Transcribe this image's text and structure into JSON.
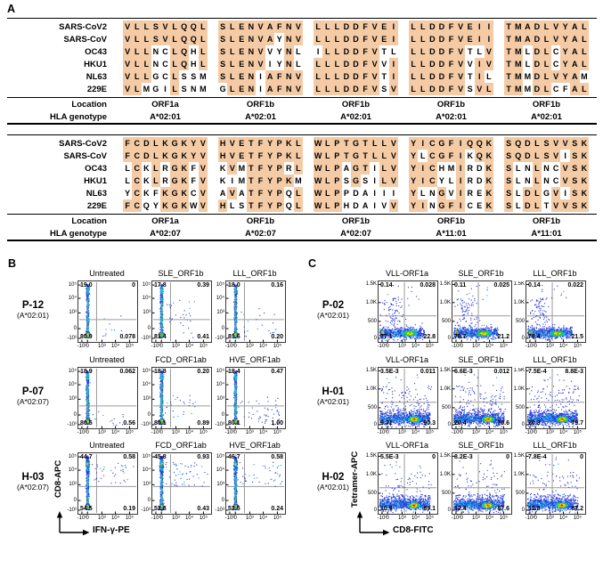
{
  "panels": {
    "A": {
      "label": "A",
      "row_labels": [
        "SARS-CoV2",
        "SARS-CoV",
        "OC43",
        "HKU1",
        "NL63",
        "229E"
      ],
      "location_label": "Location",
      "hla_label": "HLA genotype",
      "highlight_color": "#f5cba6",
      "blocks": [
        {
          "cols": [
            {
              "loc": "ORF1a",
              "hla": "A*02:01",
              "rows": [
                {
                  "s": "VLLSVLQQL",
                  "m": "111111111"
                },
                {
                  "s": "VLLSVLQQL",
                  "m": "111111111"
                },
                {
                  "s": "VLLNCLQHL",
                  "m": "111001101"
                },
                {
                  "s": "VLLNCLQHL",
                  "m": "111001101"
                },
                {
                  "s": "VLLGCLSSM",
                  "m": "111001000"
                },
                {
                  "s": "VLMGILSNM",
                  "m": "110001000"
                }
              ]
            },
            {
              "loc": "ORF1b",
              "hla": "A*02:01",
              "rows": [
                {
                  "s": "SLENVAFNV",
                  "m": "111111111"
                },
                {
                  "s": "SLENVAYNV",
                  "m": "111111011"
                },
                {
                  "s": "SLENVVYNL",
                  "m": "111110010"
                },
                {
                  "s": "SLENVIYNL",
                  "m": "111110010"
                },
                {
                  "s": "SLENIAFNV",
                  "m": "111101111"
                },
                {
                  "s": "GLENIAFNV",
                  "m": "011101111"
                }
              ]
            },
            {
              "loc": "ORF1b",
              "hla": "A*02:01",
              "rows": [
                {
                  "s": "LLLDDFVEI",
                  "m": "111111111"
                },
                {
                  "s": "LLLDDFVEI",
                  "m": "111111111"
                },
                {
                  "s": "ILLDDFVTL",
                  "m": "011111100"
                },
                {
                  "s": "LLLDDFVVI",
                  "m": "111111101"
                },
                {
                  "s": "LLLDDFVTI",
                  "m": "111111101"
                },
                {
                  "s": "LLLDDFVSV",
                  "m": "111111101"
                }
              ]
            },
            {
              "loc": "ORF1b",
              "hla": "A*02:01",
              "rows": [
                {
                  "s": "LLDDFVEII",
                  "m": "111111111"
                },
                {
                  "s": "LLDDFVEII",
                  "m": "111111111"
                },
                {
                  "s": "LLDDFVTLV",
                  "m": "111111001"
                },
                {
                  "s": "LLDDFVVIV",
                  "m": "111111011"
                },
                {
                  "s": "LLDDFVTIL",
                  "m": "111111010"
                },
                {
                  "s": "LLDDFVSVL",
                  "m": "111111011"
                }
              ]
            },
            {
              "loc": "ORF1b",
              "hla": "A*02:01",
              "rows": [
                {
                  "s": "TMADLVYAL",
                  "m": "111111111"
                },
                {
                  "s": "TMADLVYAL",
                  "m": "111111111"
                },
                {
                  "s": "TMLDLCYAL",
                  "m": "110110111"
                },
                {
                  "s": "TMLDLCYAL",
                  "m": "110110111"
                },
                {
                  "s": "TMMDLVYAM",
                  "m": "110111110"
                },
                {
                  "s": "TMMDLCFAL",
                  "m": "110110011"
                }
              ]
            }
          ]
        },
        {
          "cols": [
            {
              "loc": "ORF1a",
              "hla": "A*02:07",
              "rows": [
                {
                  "s": "FCDLKGKYV",
                  "m": "111111111"
                },
                {
                  "s": "FCDLKGKYV",
                  "m": "111111111"
                },
                {
                  "s": "LCKLRGKFV",
                  "m": "010101101"
                },
                {
                  "s": "LCKLRGKFV",
                  "m": "010101101"
                },
                {
                  "s": "YCKFKGKCV",
                  "m": "010011101"
                },
                {
                  "s": "FCQYKGKWV",
                  "m": "110011101"
                }
              ]
            },
            {
              "loc": "ORF1b",
              "hla": "A*02:07",
              "rows": [
                {
                  "s": "HVETFYPKL",
                  "m": "111111111"
                },
                {
                  "s": "HVETFYPKL",
                  "m": "111111111"
                },
                {
                  "s": "KVMTFYPRL",
                  "m": "010111101"
                },
                {
                  "s": "KIMTFYPKM",
                  "m": "000111110"
                },
                {
                  "s": "AVATFYPQL",
                  "m": "010111101"
                },
                {
                  "s": "HLSTFYPQL",
                  "m": "100111101"
                }
              ]
            },
            {
              "loc": "ORF1b",
              "hla": "A*02:07",
              "rows": [
                {
                  "s": "WLPTGTLLV",
                  "m": "111111111"
                },
                {
                  "s": "WLPTGTLLV",
                  "m": "111111111"
                },
                {
                  "s": "WLPAGTILV",
                  "m": "111011011"
                },
                {
                  "s": "WLPSGSILV",
                  "m": "111010011"
                },
                {
                  "s": "WLPPDAIII",
                  "m": "111000000"
                },
                {
                  "s": "WLPHDAIVV",
                  "m": "111000001"
                }
              ]
            },
            {
              "loc": "ORF1b",
              "hla": "A*11:01",
              "rows": [
                {
                  "s": "YICGFIQQK",
                  "m": "111111111"
                },
                {
                  "s": "YLCGFIKQK",
                  "m": "101111011"
                },
                {
                  "s": "YICHMIRDK",
                  "m": "111001001"
                },
                {
                  "s": "YICYLIRDK",
                  "m": "111001001"
                },
                {
                  "s": "YLNGVIREK",
                  "m": "100101001"
                },
                {
                  "s": "YINGFICEK",
                  "m": "110111001"
                }
              ]
            },
            {
              "loc": "ORF1b",
              "hla": "A*11:01",
              "rows": [
                {
                  "s": "SQDLSVVSK",
                  "m": "111111111"
                },
                {
                  "s": "SQDLSVISK",
                  "m": "111111011"
                },
                {
                  "s": "SLNLNCVSK",
                  "m": "100100111"
                },
                {
                  "s": "SLNLNCVSK",
                  "m": "100100111"
                },
                {
                  "s": "SLDLGVISK",
                  "m": "101101011"
                },
                {
                  "s": "SLDLTVVSK",
                  "m": "101101111"
                }
              ]
            }
          ]
        }
      ]
    },
    "B": {
      "label": "B",
      "y_axis": "CD8-APC",
      "x_axis": "IFN-γ-PE",
      "y_ticks": [
        "10⁵",
        "10⁴",
        "10³",
        "0",
        "-10³"
      ],
      "x_ticks": [
        "-10³",
        "0",
        "10³",
        "10⁴",
        "10⁵"
      ],
      "yticks_f": [
        0.06,
        0.28,
        0.52,
        0.78,
        0.94
      ],
      "xticks_f": [
        0.06,
        0.155,
        0.4,
        0.63,
        0.87
      ],
      "gates": {
        "v": 0.31,
        "h": [
          0.63,
          0.63,
          0.55
        ]
      },
      "rows": [
        {
          "id": "P-12",
          "hla": "(A*02:01)",
          "plots": [
            {
              "title": "Untreated",
              "ul": "19.0",
              "ur": "0",
              "ll": "80.9",
              "lr": "0.078",
              "fx": {
                "k": "bS",
                "sp": [
                  10,
                  0.24,
                  0.75,
                  0.55,
                  0.93
                ]
              }
            },
            {
              "title": "SLE_ORF1b",
              "ul": "17.8",
              "ur": "0.39",
              "ll": "81.4",
              "lr": "0.41",
              "fx": {
                "k": "bS",
                "sp": [
                  30,
                  0.22,
                  0.72,
                  0.3,
                  0.93
                ]
              }
            },
            {
              "title": "LLL_ORF1b",
              "ul": "18.0",
              "ur": "0.16",
              "ll": "81.6",
              "lr": "0.20",
              "fx": {
                "k": "bS",
                "sp": [
                  22,
                  0.22,
                  0.85,
                  0.45,
                  0.93
                ]
              }
            }
          ]
        },
        {
          "id": "P-07",
          "hla": "(A*02:07)",
          "plots": [
            {
              "title": "Untreated",
              "ul": "18.9",
              "ur": "0.062",
              "ll": "80.5",
              "lr": "0.56",
              "fx": {
                "k": "bS",
                "sp": [
                  14,
                  0.24,
                  0.8,
                  0.7,
                  0.95
                ]
              }
            },
            {
              "title": "FCD_ORF1ab",
              "ul": "18.8",
              "ur": "0.20",
              "ll": "80.1",
              "lr": "0.89",
              "fx": {
                "k": "bS",
                "sp": [
                  26,
                  0.22,
                  0.75,
                  0.4,
                  0.95
                ]
              }
            },
            {
              "title": "HVE_ORF1ab",
              "ul": "18.4",
              "ur": "0.47",
              "ll": "80.1",
              "lr": "1.00",
              "fx": {
                "k": "bS",
                "sp": [
                  48,
                  0.2,
                  0.95,
                  0.45,
                  0.95
                ]
              }
            }
          ]
        },
        {
          "id": "H-03",
          "hla": "(A*02:07)",
          "plots": [
            {
              "title": "Untreated",
              "ul": "44.7",
              "ur": "0.58",
              "ll": "54.5",
              "lr": "0.19",
              "fx": {
                "k": "bH",
                "sp": [
                  36,
                  0.22,
                  0.95,
                  0.15,
                  0.5
                ]
              }
            },
            {
              "title": "FCD_ORF1ab",
              "ul": "45.8",
              "ur": "0.93",
              "ll": "52.8",
              "lr": "0.43",
              "fx": {
                "k": "bH",
                "sp": [
                  55,
                  0.22,
                  0.95,
                  0.15,
                  0.55
                ]
              }
            },
            {
              "title": "HVE_ORF1ab",
              "ul": "46.7",
              "ur": "0.58",
              "ll": "52.5",
              "lr": "0.24",
              "fx": {
                "k": "bH",
                "sp": [
                  42,
                  0.22,
                  0.95,
                  0.15,
                  0.55
                ]
              }
            }
          ]
        }
      ]
    },
    "C": {
      "label": "C",
      "y_axis": "Tetramer-APC",
      "x_axis": "CD8-FITC",
      "y_ticks": [
        "1.5K",
        "1.0K",
        "500",
        "0"
      ],
      "x_ticks": [
        "-10³",
        "0",
        "10³",
        "10⁴",
        "10⁵"
      ],
      "yticks_f": [
        0.05,
        0.35,
        0.66,
        0.94
      ],
      "xticks_f": [
        0.06,
        0.155,
        0.4,
        0.63,
        0.87
      ],
      "gates": {
        "v": 0.44,
        "h": [
          0.57,
          0.57,
          0.57
        ]
      },
      "rows": [
        {
          "id": "P-02",
          "hla": "(A*02:01)",
          "plots": [
            {
              "title": "VLL-ORF1a",
              "ul": "0.14",
              "ur": "0.028",
              "ll": "77.1",
              "lr": "22.8",
              "fx": {
                "k": "cP"
              }
            },
            {
              "title": "SLE_ORF1b",
              "ul": "0.11",
              "ur": "0.025",
              "ll": "78.7",
              "lr": "21.2",
              "fx": {
                "k": "cP"
              }
            },
            {
              "title": "LLL_ORF1b",
              "ul": "0.14",
              "ur": "0.022",
              "ll": "78.4",
              "lr": "21.5",
              "fx": {
                "k": "cP"
              }
            }
          ]
        },
        {
          "id": "H-01",
          "hla": "(A*02:01)",
          "plots": [
            {
              "title": "VLL-ORF1a",
              "ul": "3.5E-3",
              "ur": "0.011",
              "ll": "9.71",
              "lr": "90.3",
              "fx": {
                "k": "cH"
              }
            },
            {
              "title": "SLE_ORF1b",
              "ul": "6.6E-3",
              "ur": "0.012",
              "ll": "20.4",
              "lr": "79.6",
              "fx": {
                "k": "cH"
              }
            },
            {
              "title": "LLL_ORF1b",
              "ul": "7.5E-4",
              "ur": "8.8E-3",
              "ll": "20.3",
              "lr": "79.7",
              "fx": {
                "k": "cH"
              }
            }
          ]
        },
        {
          "id": "H-02",
          "hla": "(A*02:01)",
          "plots": [
            {
              "title": "VLL-ORF1a",
              "ul": "5.5E-3",
              "ur": "0",
              "ll": "10.9",
              "lr": "89.1",
              "fx": {
                "k": "cH2"
              }
            },
            {
              "title": "SLE_ORF1b",
              "ul": "8.2E-3",
              "ur": "0",
              "ll": "12.4",
              "lr": "87.6",
              "fx": {
                "k": "cH2"
              }
            },
            {
              "title": "LLL_ORF1b",
              "ul": "7.8E-4",
              "ur": "0",
              "ll": "12.8",
              "lr": "87.2",
              "fx": {
                "k": "cH2"
              }
            }
          ]
        }
      ]
    }
  }
}
